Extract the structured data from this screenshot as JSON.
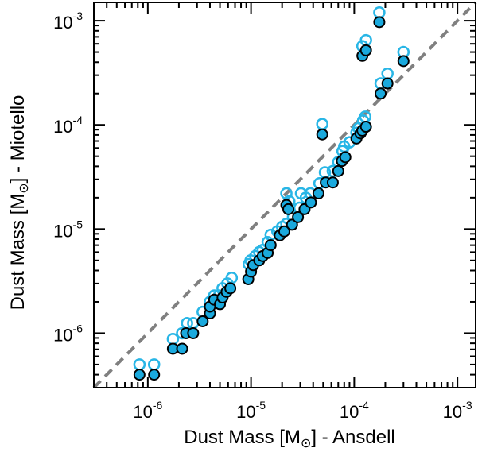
{
  "chart_data": {
    "type": "scatter",
    "title": "",
    "xlabel": {
      "prefix": "Dust Mass [M",
      "sub": "⊙",
      "suffix": "] - Ansdell"
    },
    "ylabel": {
      "prefix": "Dust Mass [M",
      "sub": "⊙",
      "suffix": "] - Miotello"
    },
    "xscale": "log",
    "yscale": "log",
    "xlim": [
      3e-07,
      0.0015
    ],
    "ylim": [
      3e-07,
      0.0015
    ],
    "grid": false,
    "legend": "none",
    "x_ticks": [
      {
        "value": 1e-06,
        "base": "10",
        "exp": "-6"
      },
      {
        "value": 1e-05,
        "base": "10",
        "exp": "-5"
      },
      {
        "value": 0.0001,
        "base": "10",
        "exp": "-4"
      },
      {
        "value": 0.001,
        "base": "10",
        "exp": "-3"
      }
    ],
    "y_ticks": [
      {
        "value": 1e-06,
        "base": "10",
        "exp": "-6"
      },
      {
        "value": 1e-05,
        "base": "10",
        "exp": "-5"
      },
      {
        "value": 0.0001,
        "base": "10",
        "exp": "-4"
      },
      {
        "value": 0.001,
        "base": "10",
        "exp": "-3"
      }
    ],
    "reference_line": {
      "style": "dashed",
      "color": "#808080",
      "from": [
        3e-07,
        3e-07
      ],
      "to": [
        0.0015,
        0.0015
      ]
    },
    "series": [
      {
        "marker": "open-circle",
        "color": "#29b6e6",
        "points": [
          [
            8.3e-07,
            5e-07
          ],
          [
            1.15e-06,
            5e-07
          ],
          [
            1.75e-06,
            8.8e-07
          ],
          [
            2.15e-06,
            1e-06
          ],
          [
            2.4e-06,
            1.25e-06
          ],
          [
            2.75e-06,
            1.25e-06
          ],
          [
            3.4e-06,
            1.6e-06
          ],
          [
            4e-06,
            2e-06
          ],
          [
            4.4e-06,
            2.3e-06
          ],
          [
            4.9e-06,
            2.3e-06
          ],
          [
            5.3e-06,
            2.7e-06
          ],
          [
            5.9e-06,
            3e-06
          ],
          [
            6.5e-06,
            3.4e-06
          ],
          [
            9.5e-06,
            4.6e-06
          ],
          [
            9.9e-06,
            5e-06
          ],
          [
            1.1e-05,
            5.5e-06
          ],
          [
            1.2e-05,
            6e-06
          ],
          [
            1.3e-05,
            6.3e-06
          ],
          [
            1.45e-05,
            7.5e-06
          ],
          [
            1.55e-05,
            8.8e-06
          ],
          [
            1.8e-05,
            9.5e-06
          ],
          [
            2e-05,
            1.05e-05
          ],
          [
            2.2e-05,
            1.12e-05
          ],
          [
            2.2e-05,
            2.2e-05
          ],
          [
            2.35e-05,
            1.85e-05
          ],
          [
            2.55e-05,
            1.3e-05
          ],
          [
            2.95e-05,
            1.6e-05
          ],
          [
            3.4e-05,
            2e-05
          ],
          [
            3.05e-05,
            2.2e-05
          ],
          [
            3.75e-05,
            2.2e-05
          ],
          [
            4.6e-05,
            2.75e-05
          ],
          [
            4.9e-05,
            0.000102
          ],
          [
            5.2e-05,
            3.5e-05
          ],
          [
            6.2e-05,
            3.6e-05
          ],
          [
            7e-05,
            4.4e-05
          ],
          [
            7.7e-05,
            5.6e-05
          ],
          [
            8e-05,
            6.2e-05
          ],
          [
            9e-05,
            6.8e-05
          ],
          [
            0.000105,
            8.4e-05
          ],
          [
            0.00011,
            9.3e-05
          ],
          [
            0.000122,
            0.00011
          ],
          [
            0.000128,
            0.00012
          ],
          [
            0.00012,
            0.00057
          ],
          [
            0.00013,
            0.00065
          ],
          [
            0.000175,
            0.0012
          ],
          [
            0.00018,
            0.00025
          ],
          [
            0.00021,
            0.00031
          ],
          [
            0.0003,
            0.0005
          ]
        ]
      },
      {
        "marker": "filled-circle",
        "color": "#1aa9dd",
        "edge_color": "#000000",
        "points": [
          [
            8.3e-07,
            4e-07
          ],
          [
            1.15e-06,
            4e-07
          ],
          [
            1.75e-06,
            7.1e-07
          ],
          [
            2.15e-06,
            7.1e-07
          ],
          [
            2.35e-06,
            1e-06
          ],
          [
            2.75e-06,
            1e-06
          ],
          [
            3.4e-06,
            1.3e-06
          ],
          [
            4e-06,
            1.55e-06
          ],
          [
            4e-06,
            1.8e-06
          ],
          [
            4.4e-06,
            2.1e-06
          ],
          [
            5e-06,
            1.9e-06
          ],
          [
            5.3e-06,
            2.2e-06
          ],
          [
            5.8e-06,
            2.5e-06
          ],
          [
            6.3e-06,
            2.7e-06
          ],
          [
            9.4e-06,
            3.3e-06
          ],
          [
            1e-05,
            3.9e-06
          ],
          [
            1.05e-05,
            4.5e-06
          ],
          [
            1.2e-05,
            5e-06
          ],
          [
            1.3e-05,
            5.5e-06
          ],
          [
            1.45e-05,
            5.9e-06
          ],
          [
            1.55e-05,
            7e-06
          ],
          [
            1.9e-05,
            8.7e-06
          ],
          [
            2.1e-05,
            9.5e-06
          ],
          [
            2.2e-05,
            1.7e-05
          ],
          [
            2.3e-05,
            1.55e-05
          ],
          [
            2.5e-05,
            1.1e-05
          ],
          [
            2.85e-05,
            1.3e-05
          ],
          [
            3.3e-05,
            1.55e-05
          ],
          [
            3.8e-05,
            1.8e-05
          ],
          [
            4.5e-05,
            2.2e-05
          ],
          [
            4.9e-05,
            8.1e-05
          ],
          [
            5.3e-05,
            2.8e-05
          ],
          [
            6.2e-05,
            2.8e-05
          ],
          [
            7e-05,
            3.6e-05
          ],
          [
            7.6e-05,
            4.5e-05
          ],
          [
            8.2e-05,
            4.9e-05
          ],
          [
            0.000105,
            7.4e-05
          ],
          [
            0.000115,
            8.3e-05
          ],
          [
            0.00012,
            8.8e-05
          ],
          [
            0.00013,
            9.6e-05
          ],
          [
            0.00012,
            0.00046
          ],
          [
            0.00013,
            0.00052
          ],
          [
            0.000175,
            0.00097
          ],
          [
            0.00018,
            0.0002
          ],
          [
            0.00021,
            0.00025
          ],
          [
            0.0003,
            0.00041
          ]
        ]
      }
    ]
  }
}
